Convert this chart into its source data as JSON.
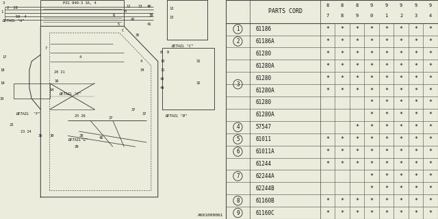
{
  "catalog_number": "A601000061",
  "bg_color": "#ececdc",
  "table_header": "PARTS CORD",
  "col_labels_top": [
    "8\n7",
    "8\n8",
    "8\n9",
    "9\n0",
    "9\n1",
    "9\n2",
    "9\n3",
    "9\n4"
  ],
  "rows": [
    {
      "num": "1",
      "circled": true,
      "part": "61186",
      "marks": [
        1,
        1,
        1,
        1,
        1,
        1,
        1,
        1
      ],
      "group_start": true,
      "group_end": true
    },
    {
      "num": "2",
      "circled": true,
      "part": "61186A",
      "marks": [
        1,
        1,
        1,
        1,
        1,
        1,
        1,
        1
      ],
      "group_start": true,
      "group_end": true
    },
    {
      "num": "",
      "circled": false,
      "part": "61280",
      "marks": [
        1,
        1,
        1,
        1,
        1,
        1,
        1,
        1
      ],
      "group_start": false,
      "group_end": false
    },
    {
      "num": "",
      "circled": false,
      "part": "61280A",
      "marks": [
        1,
        1,
        1,
        1,
        1,
        1,
        1,
        1
      ],
      "group_start": false,
      "group_end": false
    },
    {
      "num": "",
      "circled": false,
      "part": "61280",
      "marks": [
        1,
        1,
        1,
        1,
        1,
        1,
        1,
        1
      ],
      "group_start": false,
      "group_end": false
    },
    {
      "num": "3",
      "circled": true,
      "part": "61280A",
      "marks": [
        1,
        1,
        1,
        1,
        1,
        1,
        1,
        1
      ],
      "group_start": false,
      "group_end": false
    },
    {
      "num": "",
      "circled": false,
      "part": "61280",
      "marks": [
        0,
        0,
        0,
        1,
        1,
        1,
        1,
        1
      ],
      "group_start": false,
      "group_end": false
    },
    {
      "num": "",
      "circled": false,
      "part": "61280A",
      "marks": [
        0,
        0,
        0,
        1,
        1,
        1,
        1,
        1
      ],
      "group_start": false,
      "group_end": true
    },
    {
      "num": "4",
      "circled": true,
      "part": "57547",
      "marks": [
        0,
        0,
        1,
        1,
        1,
        1,
        1,
        1
      ],
      "group_start": true,
      "group_end": true
    },
    {
      "num": "5",
      "circled": true,
      "part": "61011",
      "marks": [
        1,
        1,
        1,
        1,
        1,
        1,
        1,
        1
      ],
      "group_start": true,
      "group_end": true
    },
    {
      "num": "6",
      "circled": true,
      "part": "61011A",
      "marks": [
        1,
        1,
        1,
        1,
        1,
        1,
        1,
        1
      ],
      "group_start": true,
      "group_end": true
    },
    {
      "num": "",
      "circled": false,
      "part": "61244",
      "marks": [
        1,
        1,
        1,
        1,
        1,
        1,
        1,
        1
      ],
      "group_start": false,
      "group_end": false
    },
    {
      "num": "7",
      "circled": true,
      "part": "62244A",
      "marks": [
        0,
        0,
        0,
        1,
        1,
        1,
        1,
        1
      ],
      "group_start": false,
      "group_end": false
    },
    {
      "num": "",
      "circled": false,
      "part": "62244B",
      "marks": [
        0,
        0,
        0,
        1,
        1,
        1,
        1,
        1
      ],
      "group_start": false,
      "group_end": true
    },
    {
      "num": "8",
      "circled": true,
      "part": "61160B",
      "marks": [
        1,
        1,
        1,
        1,
        1,
        1,
        1,
        1
      ],
      "group_start": true,
      "group_end": true
    },
    {
      "num": "9",
      "circled": true,
      "part": "61160C",
      "marks": [
        1,
        1,
        1,
        1,
        1,
        1,
        1,
        1
      ],
      "group_start": true,
      "group_end": true
    }
  ],
  "groups": [
    {
      "num": "1",
      "rows": [
        0
      ],
      "label_row": 0
    },
    {
      "num": "2",
      "rows": [
        1
      ],
      "label_row": 1
    },
    {
      "num": "3",
      "rows": [
        2,
        3,
        4,
        5,
        6,
        7
      ],
      "label_row": 4
    },
    {
      "num": "4",
      "rows": [
        8
      ],
      "label_row": 8
    },
    {
      "num": "5",
      "rows": [
        9
      ],
      "label_row": 9
    },
    {
      "num": "6",
      "rows": [
        10
      ],
      "label_row": 10
    },
    {
      "num": "7",
      "rows": [
        11,
        12,
        13
      ],
      "label_row": 12
    },
    {
      "num": "8",
      "rows": [
        14
      ],
      "label_row": 14
    },
    {
      "num": "9",
      "rows": [
        15
      ],
      "label_row": 15
    }
  ],
  "line_color": "#444444",
  "text_color": "#111111",
  "star_char": "*"
}
